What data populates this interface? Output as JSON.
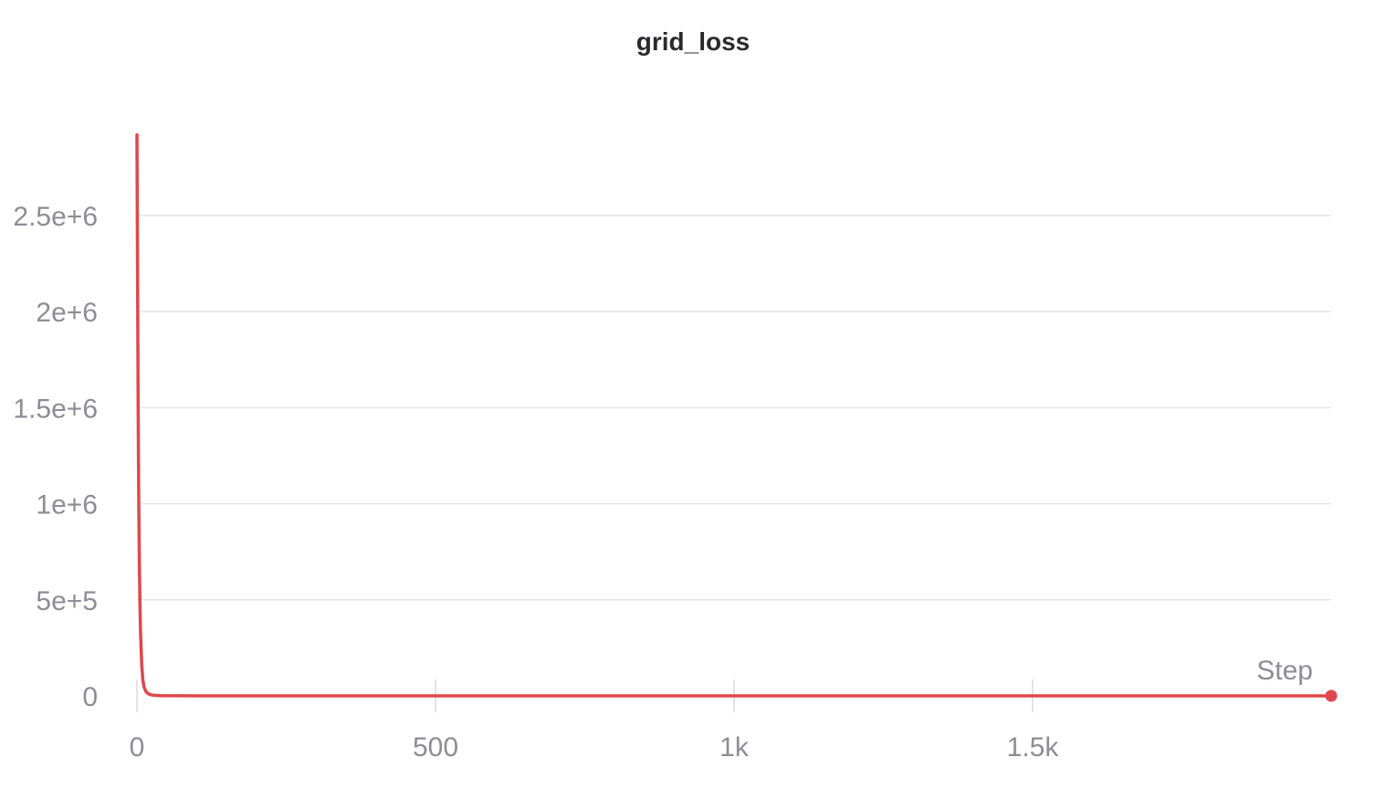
{
  "chart_data": {
    "type": "line",
    "title": "grid_loss",
    "xlabel": "Step",
    "ylabel": "",
    "xlim": [
      0,
      2000
    ],
    "ylim": [
      -50000,
      2920000
    ],
    "x_ticks": [
      0,
      500,
      1000,
      1500
    ],
    "x_tick_labels": [
      "0",
      "500",
      "1k",
      "1.5k"
    ],
    "y_ticks": [
      0,
      500000,
      1000000,
      1500000,
      2000000,
      2500000
    ],
    "y_tick_labels": [
      "0",
      "5e+5",
      "1e+6",
      "1.5e+6",
      "2e+6",
      "2.5e+6"
    ],
    "grid": true,
    "color": "#e0474c",
    "series": [
      {
        "x": [
          0,
          1,
          2,
          3,
          4,
          5,
          6,
          8,
          10,
          12,
          15,
          20,
          25,
          30,
          40,
          50,
          75,
          100,
          200,
          500,
          1000,
          1500,
          2000
        ],
        "y": [
          2920000,
          2200000,
          1500000,
          1020000,
          700000,
          480000,
          330000,
          160000,
          80000,
          45000,
          22000,
          9000,
          4500,
          2500,
          1200,
          700,
          400,
          250,
          120,
          50,
          20,
          10,
          5
        ]
      }
    ]
  }
}
